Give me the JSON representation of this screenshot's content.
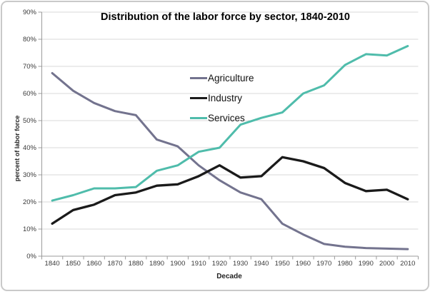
{
  "chart_data": {
    "type": "line",
    "title": "Distribution of the labor force by sector, 1840-2010",
    "xlabel": "Decade",
    "ylabel": "percent of labor force",
    "categories": [
      "1840",
      "1850",
      "1860",
      "1870",
      "1880",
      "1890",
      "1900",
      "1910",
      "1920",
      "1930",
      "1940",
      "1950",
      "1960",
      "1970",
      "1980",
      "1990",
      "2000",
      "2010"
    ],
    "series": [
      {
        "name": "Agriculture",
        "color": "#73738e",
        "values": [
          67.5,
          61,
          56.5,
          53.5,
          52,
          43,
          40.5,
          33.5,
          28,
          23.5,
          21,
          12,
          8,
          4.5,
          3.5,
          3,
          2.8,
          2.6
        ]
      },
      {
        "name": "Industry",
        "color": "#1a1a1a",
        "values": [
          12,
          17,
          19,
          22.5,
          23.5,
          26,
          26.5,
          29.5,
          33.5,
          29,
          29.5,
          36.5,
          35,
          32.5,
          27,
          24,
          24.5,
          21
        ]
      },
      {
        "name": "Services",
        "color": "#4fbcab",
        "values": [
          20.5,
          22.5,
          25,
          25,
          25.5,
          31.5,
          33.5,
          38.5,
          40,
          48.5,
          51,
          53,
          60,
          63,
          70.5,
          74.5,
          74,
          77.5
        ]
      }
    ],
    "ylim": [
      0,
      90
    ],
    "y_ticks": [
      "0%",
      "10%",
      "20%",
      "30%",
      "40%",
      "50%",
      "60%",
      "70%",
      "80%",
      "90%"
    ],
    "grid": true,
    "legend_position": "upper-left-of-center"
  },
  "colors": {
    "gridline": "#d9d9d9",
    "axis": "#9b9b9b",
    "tick_text": "#3a3a3a"
  }
}
